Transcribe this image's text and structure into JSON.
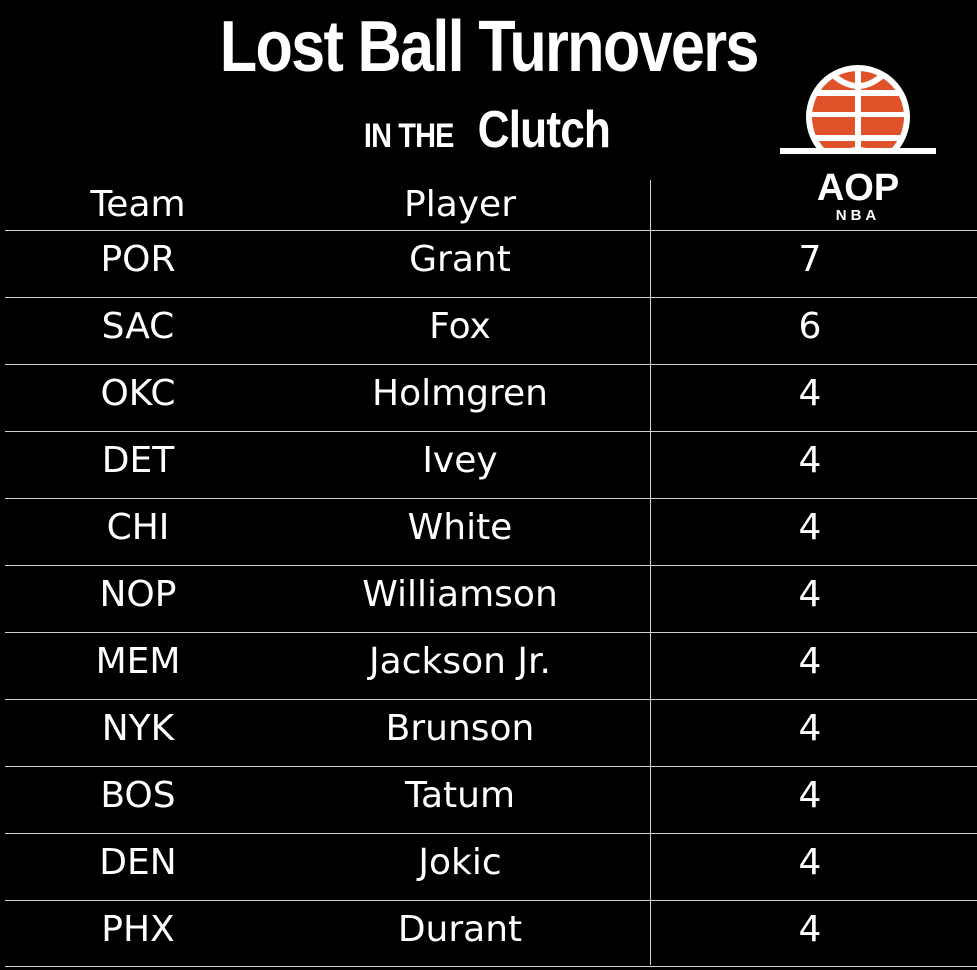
{
  "title": "Lost Ball Turnovers",
  "subtitle_small": "IN THE",
  "subtitle_big": "Clutch",
  "logo": {
    "text": "AOP",
    "subtext": "NBA",
    "color": "#e0522a"
  },
  "headers": {
    "team": "Team",
    "player": "Player",
    "value": ""
  },
  "rows": [
    {
      "team": "POR",
      "player": "Grant",
      "value": "7"
    },
    {
      "team": "SAC",
      "player": "Fox",
      "value": "6"
    },
    {
      "team": "OKC",
      "player": "Holmgren",
      "value": "4"
    },
    {
      "team": "DET",
      "player": "Ivey",
      "value": "4"
    },
    {
      "team": "CHI",
      "player": "White",
      "value": "4"
    },
    {
      "team": "NOP",
      "player": "Williamson",
      "value": "4"
    },
    {
      "team": "MEM",
      "player": "Jackson Jr.",
      "value": "4"
    },
    {
      "team": "NYK",
      "player": "Brunson",
      "value": "4"
    },
    {
      "team": "BOS",
      "player": "Tatum",
      "value": "4"
    },
    {
      "team": "DEN",
      "player": "Jokic",
      "value": "4"
    },
    {
      "team": "PHX",
      "player": "Durant",
      "value": "4"
    }
  ]
}
